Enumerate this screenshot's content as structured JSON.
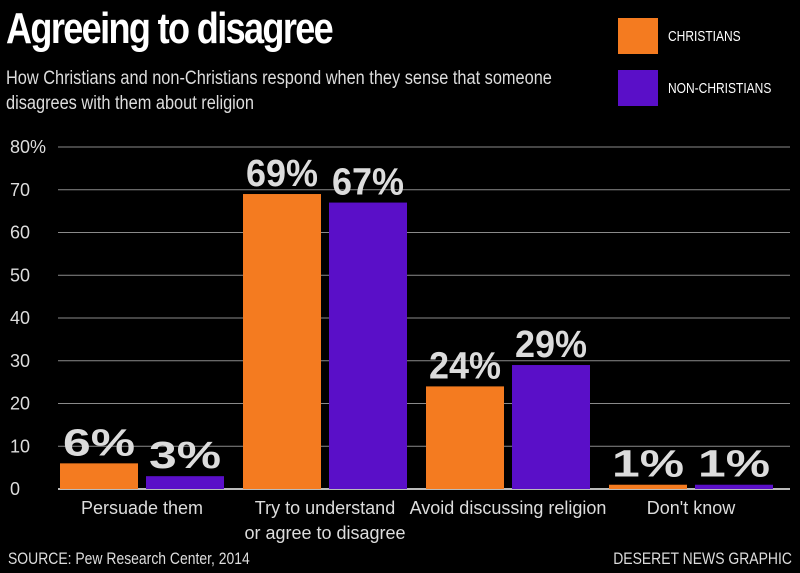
{
  "title": "Agreeing to disagree",
  "subtitle": "How Christians and non-Christians respond when they sense that someone disagrees with them about religion",
  "source": "SOURCE: Pew Research Center, 2014",
  "credit": "DESERET NEWS GRAPHIC",
  "colors": {
    "christians": "#f47b20",
    "non_christians": "#5a0fc8",
    "grid": "#8a8a8a",
    "background": "#000000"
  },
  "chart_data": {
    "type": "bar",
    "title": "Agreeing to disagree",
    "categories": [
      "Persuade them",
      "Try to understand\nor agree to disagree",
      "Avoid discussing religion",
      "Don't know"
    ],
    "series": [
      {
        "name": "CHRISTIANS",
        "values": [
          6,
          69,
          24,
          1
        ],
        "labels": [
          "6%",
          "69%",
          "24%",
          "1%"
        ]
      },
      {
        "name": "NON-CHRISTIANS",
        "values": [
          3,
          67,
          29,
          1
        ],
        "labels": [
          "3%",
          "67%",
          "29%",
          "1%"
        ]
      }
    ],
    "ylim": [
      0,
      80
    ],
    "yticks": [
      0,
      10,
      20,
      30,
      40,
      50,
      60,
      70,
      80
    ],
    "ytick_labels": [
      "0",
      "10",
      "20",
      "30",
      "40",
      "50",
      "60",
      "70",
      "80%"
    ],
    "xlabel": "",
    "ylabel": "",
    "grid": true,
    "legend": "top-right"
  }
}
